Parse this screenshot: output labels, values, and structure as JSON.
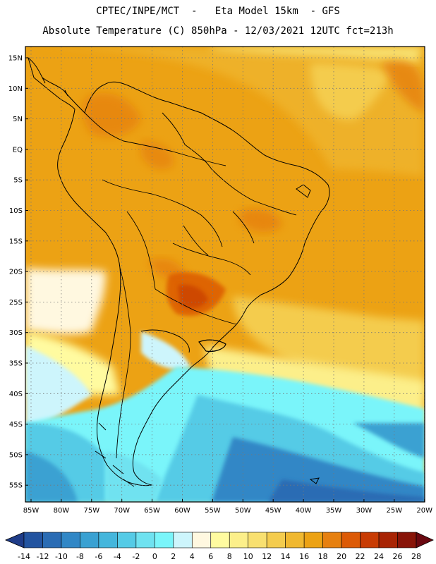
{
  "title": {
    "line1": "CPTEC/INPE/MCT  -   Eta Model 15km  - GFS",
    "line2": "Absolute Temperature (C) 850hPa - 12/03/2021 12UTC fct=213h"
  },
  "axes": {
    "lat_labels": [
      "15N",
      "10N",
      "5N",
      "EQ",
      "5S",
      "10S",
      "15S",
      "20S",
      "25S",
      "30S",
      "35S",
      "40S",
      "45S",
      "50S",
      "55S"
    ],
    "lon_labels": [
      "85W",
      "80W",
      "75W",
      "70W",
      "65W",
      "60W",
      "55W",
      "50W",
      "45W",
      "40W",
      "35W",
      "30W",
      "25W",
      "20W"
    ]
  },
  "colorbar": {
    "labels": [
      "-14",
      "-12",
      "-10",
      "-8",
      "-6",
      "-4",
      "-2",
      "0",
      "2",
      "4",
      "6",
      "8",
      "10",
      "12",
      "14",
      "16",
      "18",
      "20",
      "22",
      "24",
      "26",
      "28"
    ],
    "colors": [
      "#1f3c88",
      "#2354a0",
      "#2a6cb4",
      "#3187c6",
      "#3aa1d2",
      "#44b6dc",
      "#55cbe6",
      "#6fe2f0",
      "#7af5fa",
      "#cdf5fc",
      "#fff8e0",
      "#fffba0",
      "#fcef8a",
      "#f8e070",
      "#f4cc4e",
      "#f0b830",
      "#eca214",
      "#e68010",
      "#dc5a06",
      "#c83c04",
      "#a82404",
      "#881408",
      "#6a0810"
    ]
  }
}
